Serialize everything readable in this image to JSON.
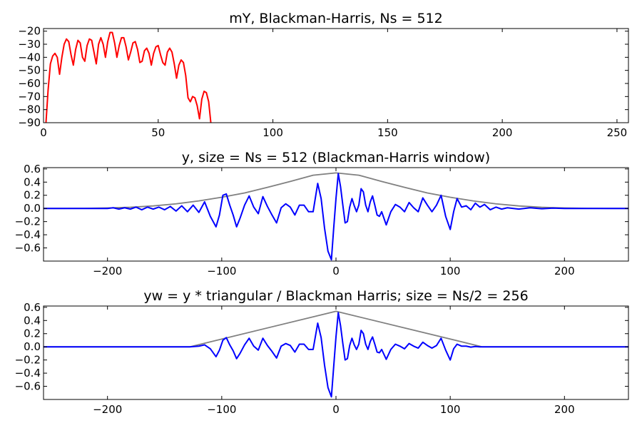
{
  "chart_data": [
    {
      "type": "line",
      "title": "mY, Blackman-Harris, Ns = 512",
      "xlim": [
        0,
        255
      ],
      "ylim": [
        -90,
        -18
      ],
      "xticks": [
        0,
        50,
        100,
        150,
        200,
        250
      ],
      "yticks": [
        -90,
        -80,
        -70,
        -60,
        -50,
        -40,
        -30,
        -20
      ],
      "grid": false,
      "series": [
        {
          "color": "#ff0000",
          "x": [
            1,
            2,
            3,
            4,
            5,
            6,
            7,
            8,
            9,
            10,
            11,
            12,
            13,
            14,
            15,
            16,
            17,
            18,
            19,
            20,
            21,
            22,
            23,
            24,
            25,
            26,
            27,
            28,
            29,
            30,
            31,
            32,
            33,
            34,
            35,
            36,
            37,
            38,
            39,
            40,
            41,
            42,
            43,
            44,
            45,
            46,
            47,
            48,
            49,
            50,
            51,
            52,
            53,
            54,
            55,
            56,
            57,
            58,
            59,
            60,
            61,
            62,
            63,
            64,
            65,
            66,
            67,
            68,
            69,
            70,
            71,
            72,
            73,
            74
          ],
          "y": [
            -92,
            -65,
            -45,
            -39,
            -37,
            -40,
            -53,
            -40,
            -30,
            -26,
            -28,
            -38,
            -46,
            -34,
            -27,
            -29,
            -40,
            -43,
            -31,
            -26,
            -27,
            -36,
            -45,
            -30,
            -25,
            -30,
            -40,
            -28,
            -21,
            -21,
            -29,
            -40,
            -31,
            -25,
            -25,
            -32,
            -42,
            -36,
            -29,
            -28,
            -34,
            -44,
            -43,
            -35,
            -33,
            -37,
            -46,
            -37,
            -32,
            -31,
            -38,
            -44,
            -46,
            -36,
            -33,
            -36,
            -45,
            -56,
            -46,
            -42,
            -44,
            -54,
            -71,
            -74,
            -70,
            -71,
            -77,
            -87,
            -72,
            -66,
            -67,
            -74,
            -91,
            -92
          ]
        }
      ]
    },
    {
      "type": "line",
      "title": "y, size = Ns = 512 (Blackman-Harris window)",
      "xlim": [
        -256,
        256
      ],
      "ylim": [
        -0.8,
        0.62
      ],
      "xticks": [
        -200,
        -100,
        0,
        100,
        200
      ],
      "yticks": [
        0.6,
        0.4,
        0.2,
        0.0,
        -0.2,
        -0.4,
        -0.6
      ],
      "ytick_labels": [
        "0.6",
        "0.4",
        "0.2",
        "0.0",
        "−0.2",
        "−0.4",
        "−0.6"
      ],
      "grid": false,
      "series": [
        {
          "color": "#808080",
          "x": [
            -256,
            -240,
            -220,
            -200,
            -180,
            -160,
            -140,
            -120,
            -100,
            -80,
            -60,
            -40,
            -20,
            0,
            20,
            40,
            60,
            80,
            100,
            120,
            140,
            160,
            180,
            200,
            220,
            240,
            256
          ],
          "y": [
            0.0,
            0.0,
            0.002,
            0.007,
            0.018,
            0.038,
            0.07,
            0.115,
            0.17,
            0.235,
            0.32,
            0.41,
            0.505,
            0.54,
            0.505,
            0.41,
            0.32,
            0.235,
            0.17,
            0.115,
            0.07,
            0.038,
            0.018,
            0.007,
            0.002,
            0.0,
            0.0
          ]
        },
        {
          "color": "#0000ff",
          "x": [
            -256,
            -200,
            -195,
            -190,
            -185,
            -180,
            -175,
            -170,
            -165,
            -160,
            -155,
            -150,
            -145,
            -140,
            -135,
            -130,
            -125,
            -120,
            -115,
            -110,
            -105,
            -102,
            -99,
            -96,
            -93,
            -90,
            -87,
            -84,
            -80,
            -76,
            -72,
            -68,
            -64,
            -60,
            -56,
            -52,
            -48,
            -44,
            -40,
            -36,
            -32,
            -28,
            -24,
            -20,
            -16,
            -13,
            -10,
            -7,
            -4,
            -2,
            0,
            2,
            4,
            6,
            8,
            10,
            12,
            14,
            16,
            18,
            20,
            22,
            24,
            26,
            28,
            30,
            32,
            34,
            36,
            38,
            40,
            44,
            48,
            52,
            56,
            60,
            64,
            68,
            72,
            76,
            80,
            84,
            88,
            92,
            96,
            100,
            103,
            106,
            110,
            114,
            118,
            122,
            126,
            130,
            135,
            140,
            145,
            150,
            160,
            170,
            180,
            190,
            200,
            256
          ],
          "y": [
            0.0,
            0.0,
            0.01,
            -0.01,
            0.01,
            -0.01,
            0.02,
            -0.02,
            0.02,
            -0.01,
            0.02,
            -0.02,
            0.03,
            -0.04,
            0.04,
            -0.05,
            0.05,
            -0.06,
            0.1,
            -0.12,
            -0.28,
            -0.1,
            0.2,
            0.22,
            0.05,
            -0.1,
            -0.28,
            -0.15,
            0.05,
            0.19,
            0.02,
            -0.08,
            0.18,
            0.03,
            -0.1,
            -0.22,
            0.01,
            0.07,
            0.02,
            -0.1,
            0.05,
            0.05,
            -0.05,
            -0.05,
            0.38,
            0.15,
            -0.3,
            -0.65,
            -0.78,
            -0.3,
            0.15,
            0.53,
            0.33,
            0.05,
            -0.22,
            -0.2,
            0.02,
            0.15,
            0.04,
            -0.05,
            0.05,
            0.3,
            0.25,
            0.05,
            -0.05,
            0.1,
            0.19,
            0.05,
            -0.1,
            -0.12,
            -0.05,
            -0.25,
            -0.05,
            0.06,
            0.02,
            -0.05,
            0.09,
            0.01,
            -0.05,
            0.16,
            0.05,
            -0.05,
            0.05,
            0.2,
            -0.12,
            -0.32,
            -0.05,
            0.15,
            0.02,
            0.04,
            -0.02,
            0.08,
            0.02,
            0.06,
            -0.02,
            0.02,
            -0.01,
            0.01,
            -0.01,
            0.01,
            -0.005,
            0.005,
            0.0,
            0.0
          ]
        }
      ]
    },
    {
      "type": "line",
      "title": "yw = y * triangular / Blackman Harris; size = Ns/2 = 256",
      "xlim": [
        -256,
        256
      ],
      "ylim": [
        -0.8,
        0.62
      ],
      "xticks": [
        -200,
        -100,
        0,
        100,
        200
      ],
      "yticks": [
        0.6,
        0.4,
        0.2,
        0.0,
        -0.2,
        -0.4,
        -0.6
      ],
      "ytick_labels": [
        "0.6",
        "0.4",
        "0.2",
        "0.0",
        "−0.2",
        "−0.4",
        "−0.6"
      ],
      "grid": false,
      "series": [
        {
          "color": "#808080",
          "x": [
            -256,
            -128,
            0,
            128,
            256
          ],
          "y": [
            0.0,
            0.0,
            0.54,
            0.0,
            0.0
          ]
        },
        {
          "color": "#0000ff",
          "x": [
            -256,
            -128,
            -120,
            -115,
            -110,
            -105,
            -102,
            -99,
            -96,
            -93,
            -90,
            -87,
            -84,
            -80,
            -76,
            -72,
            -68,
            -64,
            -60,
            -56,
            -52,
            -48,
            -44,
            -40,
            -36,
            -32,
            -28,
            -24,
            -20,
            -16,
            -13,
            -10,
            -7,
            -4,
            -2,
            0,
            2,
            4,
            6,
            8,
            10,
            12,
            14,
            16,
            18,
            20,
            22,
            24,
            26,
            28,
            30,
            32,
            34,
            36,
            38,
            40,
            44,
            48,
            52,
            56,
            60,
            64,
            68,
            72,
            76,
            80,
            84,
            88,
            92,
            96,
            100,
            103,
            106,
            110,
            114,
            118,
            122,
            126,
            128,
            256
          ],
          "y": [
            0.0,
            0.0,
            0.01,
            0.03,
            -0.03,
            -0.15,
            -0.05,
            0.1,
            0.14,
            0.03,
            -0.06,
            -0.18,
            -0.1,
            0.03,
            0.13,
            0.01,
            -0.05,
            0.13,
            0.02,
            -0.07,
            -0.17,
            0.01,
            0.05,
            0.02,
            -0.08,
            0.04,
            0.04,
            -0.04,
            -0.04,
            0.36,
            0.14,
            -0.28,
            -0.62,
            -0.76,
            -0.3,
            0.15,
            0.52,
            0.32,
            0.05,
            -0.2,
            -0.18,
            0.02,
            0.13,
            0.03,
            -0.04,
            0.04,
            0.25,
            0.2,
            0.04,
            -0.04,
            0.08,
            0.15,
            0.04,
            -0.08,
            -0.09,
            -0.04,
            -0.19,
            -0.04,
            0.04,
            0.01,
            -0.03,
            0.05,
            0.01,
            -0.02,
            0.07,
            0.02,
            -0.02,
            0.02,
            0.13,
            -0.05,
            -0.2,
            -0.03,
            0.04,
            0.01,
            0.01,
            -0.005,
            0.005,
            0.0,
            0.0,
            0.0
          ]
        }
      ]
    }
  ]
}
